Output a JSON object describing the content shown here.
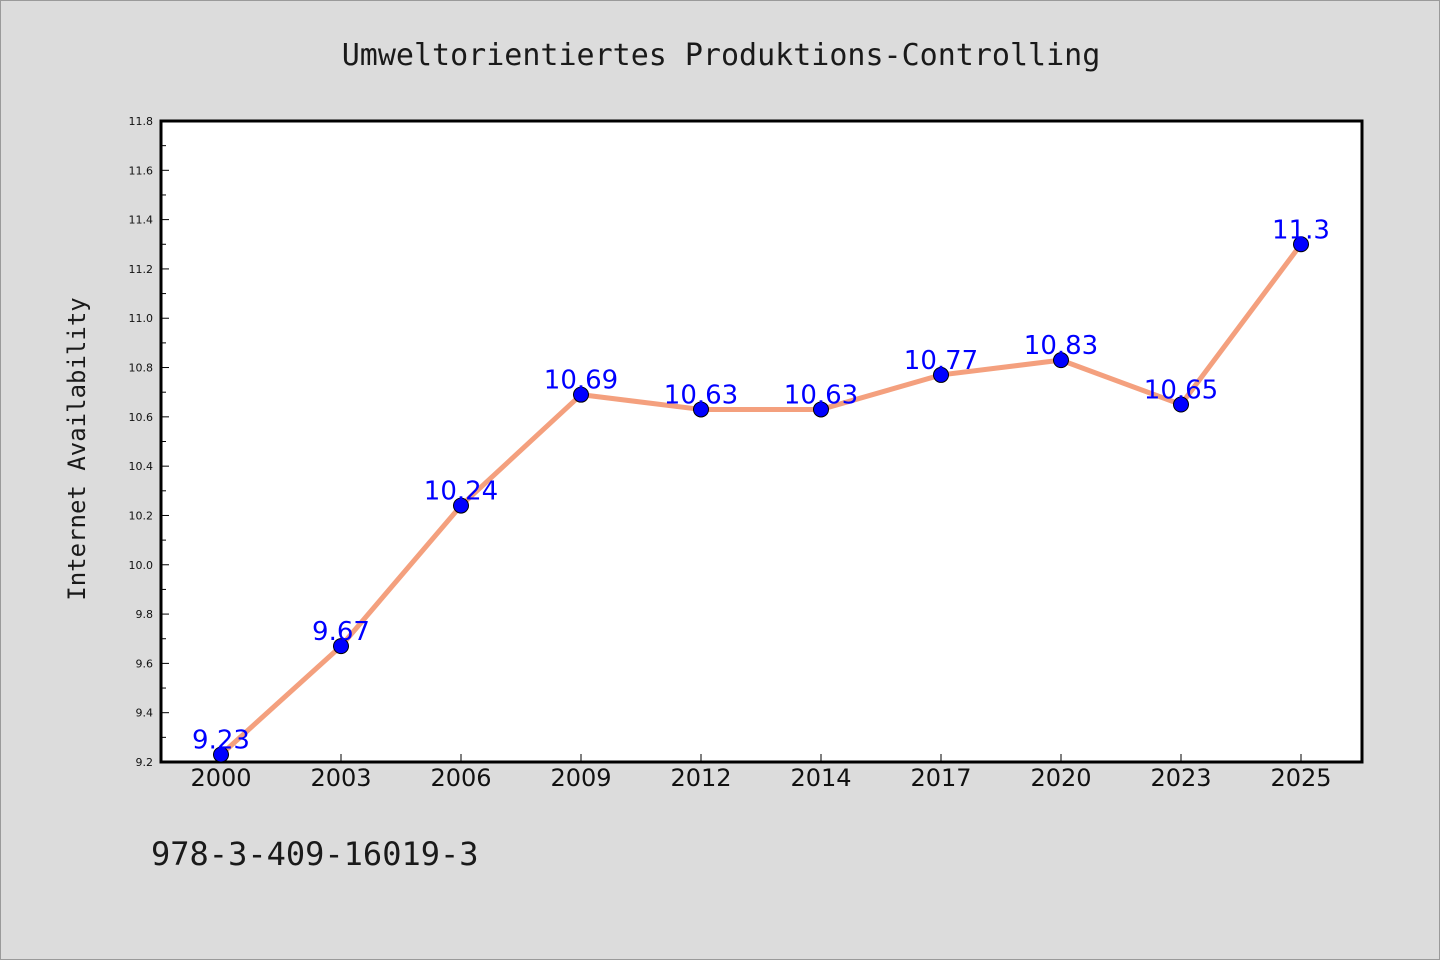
{
  "chart_data": {
    "type": "line",
    "title": "Umweltorientiertes Produktions-Controlling",
    "xlabel": "",
    "ylabel": "Internet Availability",
    "categories": [
      "2000",
      "2003",
      "2006",
      "2009",
      "2012",
      "2014",
      "2017",
      "2020",
      "2023",
      "2025"
    ],
    "values": [
      9.23,
      9.67,
      10.24,
      10.69,
      10.63,
      10.63,
      10.77,
      10.83,
      10.65,
      11.3
    ],
    "data_labels": [
      "9.23",
      "9.67",
      "10.24",
      "10.69",
      "10.63",
      "10.63",
      "10.77",
      "10.83",
      "10.65",
      "11.3"
    ],
    "ylim": [
      9.2,
      11.8
    ],
    "yticks": [
      "9.2",
      "9.4",
      "9.6",
      "9.8",
      "10.0",
      "10.2",
      "10.4",
      "10.6",
      "10.8",
      "11.0",
      "11.2",
      "11.4",
      "11.6",
      "11.8"
    ],
    "grid": false,
    "legend": "none",
    "line_color": "#f4a07e",
    "marker_color": "#0000ff",
    "label_color": "#0000ff"
  },
  "footer": {
    "isbn": "978-3-409-16019-3"
  }
}
